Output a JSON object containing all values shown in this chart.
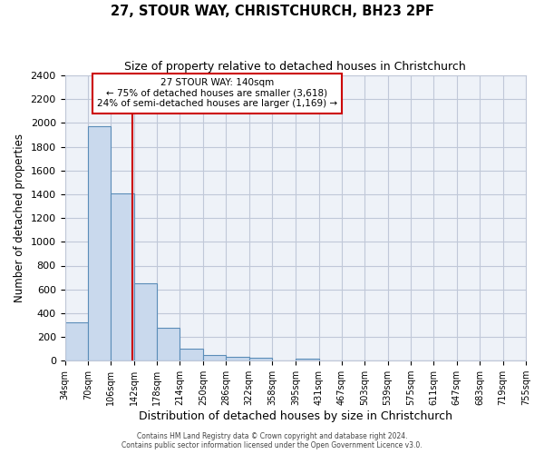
{
  "title1": "27, STOUR WAY, CHRISTCHURCH, BH23 2PF",
  "title2": "Size of property relative to detached houses in Christchurch",
  "xlabel": "Distribution of detached houses by size in Christchurch",
  "ylabel": "Number of detached properties",
  "bin_edges": [
    34,
    70,
    106,
    142,
    178,
    214,
    250,
    286,
    322,
    358,
    395,
    431,
    467,
    503,
    539,
    575,
    611,
    647,
    683,
    719,
    755
  ],
  "bin_heights": [
    325,
    1975,
    1410,
    650,
    275,
    100,
    45,
    30,
    25,
    0,
    20,
    0,
    0,
    0,
    0,
    0,
    0,
    0,
    0,
    0
  ],
  "bar_color": "#c9d9ed",
  "bar_edge_color": "#5b8db8",
  "grid_color": "#c0c8d8",
  "background_color": "#eef2f8",
  "property_line_x": 140,
  "property_line_color": "#cc0000",
  "annotation_box_edge_color": "#cc0000",
  "annotation_line1": "27 STOUR WAY: 140sqm",
  "annotation_line2": "← 75% of detached houses are smaller (3,618)",
  "annotation_line3": "24% of semi-detached houses are larger (1,169) →",
  "ylim": [
    0,
    2400
  ],
  "yticks": [
    0,
    200,
    400,
    600,
    800,
    1000,
    1200,
    1400,
    1600,
    1800,
    2000,
    2200,
    2400
  ],
  "footer1": "Contains HM Land Registry data © Crown copyright and database right 2024.",
  "footer2": "Contains public sector information licensed under the Open Government Licence v3.0."
}
